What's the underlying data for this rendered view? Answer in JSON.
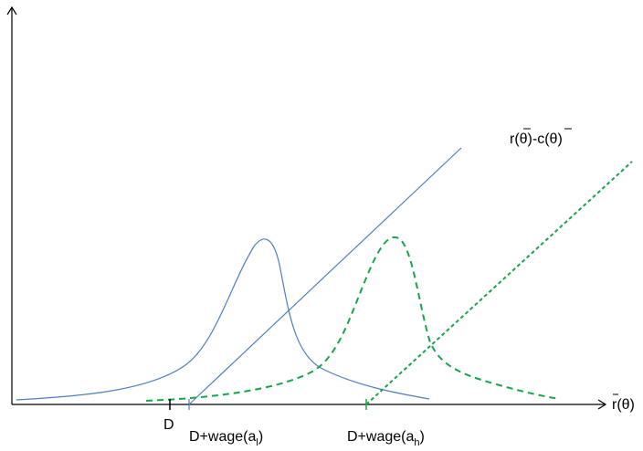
{
  "diagram": {
    "x_axis_label": {
      "main": "r(θ)",
      "overline_char": "r"
    },
    "curve_label": {
      "text": "r(θ)-c(θ)",
      "overlined": [
        "θ",
        "θ"
      ]
    },
    "tick_labels": {
      "d": "D",
      "d_wage_low": {
        "prefix": "D+wage(a",
        "subscript": "l",
        "suffix": ")"
      },
      "d_wage_high": {
        "prefix": "D+wage(a",
        "subscript": "h",
        "suffix": ")"
      }
    },
    "colors": {
      "axes": "#000000",
      "solid_series": "#4f7fbf",
      "dashed_series": "#1aa34a"
    },
    "line_styles": {
      "solid": "solid",
      "dashed": "dashed"
    }
  }
}
